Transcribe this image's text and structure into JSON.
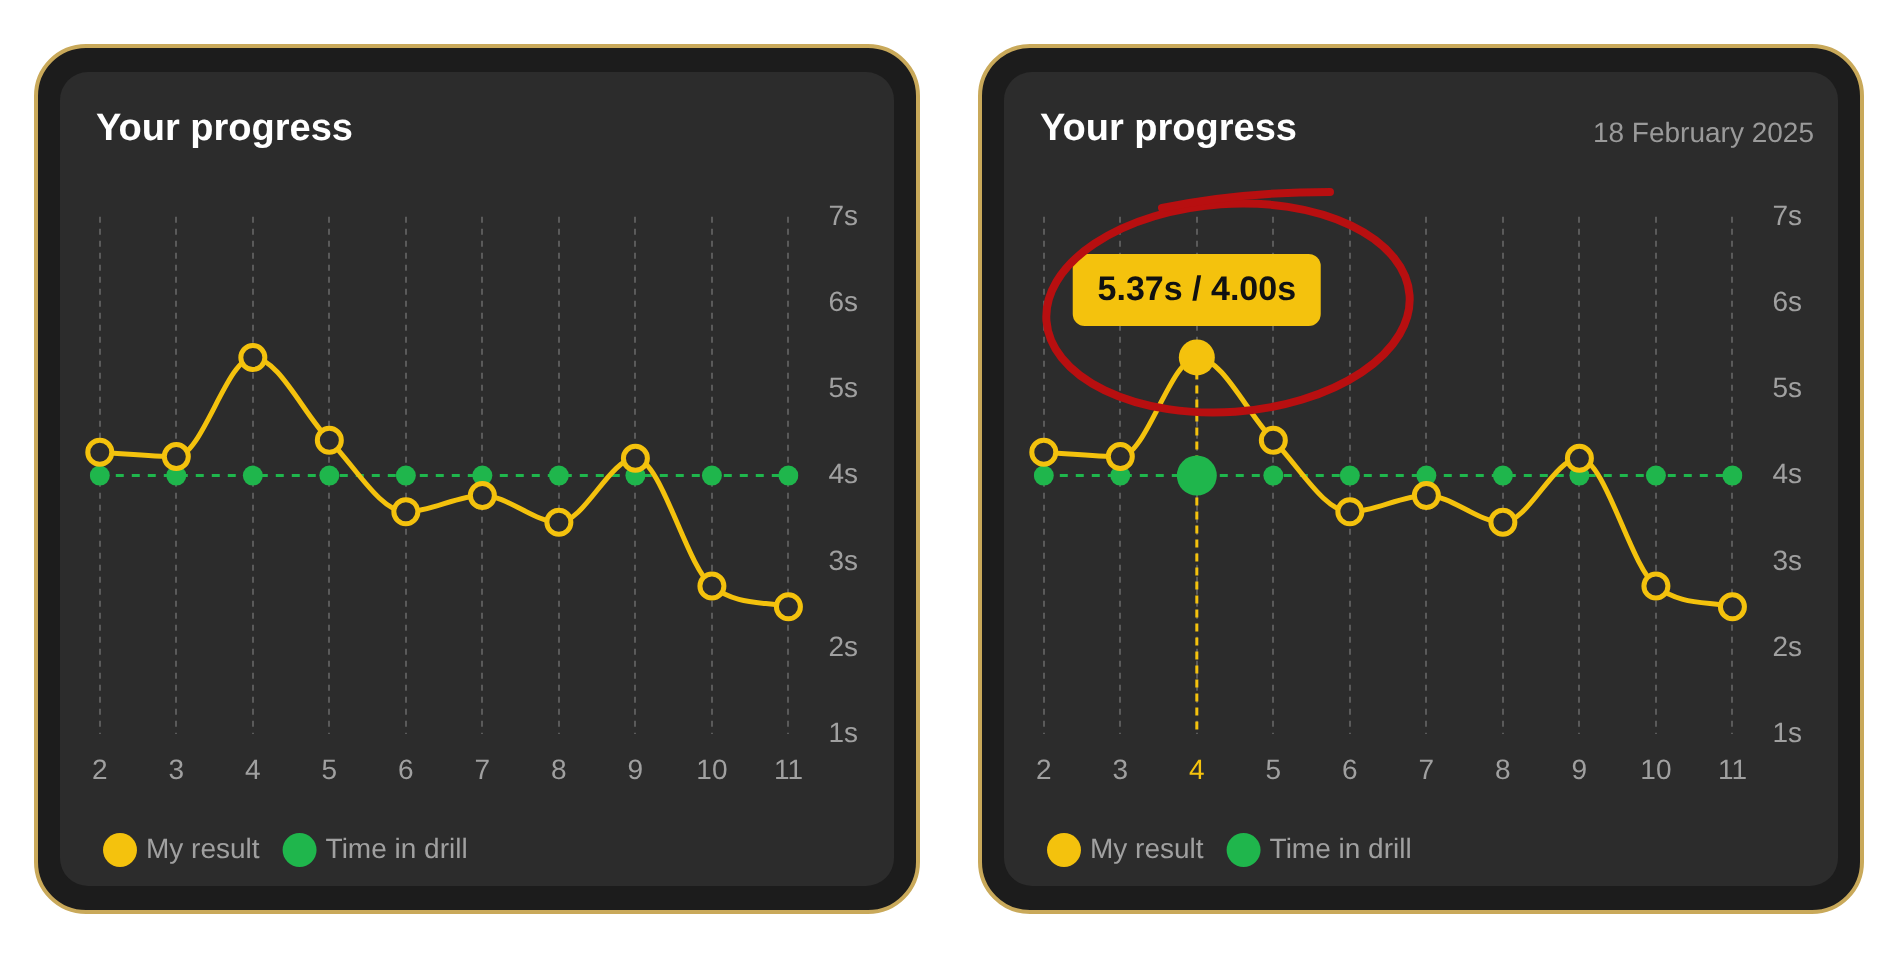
{
  "chart_data": [
    {
      "type": "line",
      "title": "Your progress",
      "categories": [
        "2",
        "3",
        "4",
        "5",
        "6",
        "7",
        "8",
        "9",
        "10",
        "11"
      ],
      "series": [
        {
          "name": "My result",
          "color": "#f4c20d",
          "values": [
            4.27,
            4.22,
            5.37,
            4.41,
            3.58,
            3.77,
            3.46,
            4.2,
            2.72,
            2.48
          ],
          "line_style": "solid",
          "marker": "circle"
        },
        {
          "name": "Time in drill",
          "color": "#1fb64c",
          "values": [
            4,
            4,
            4,
            4,
            4,
            4,
            4,
            4,
            4,
            4
          ],
          "line_style": "dashed",
          "marker": "circle"
        }
      ],
      "ylim": [
        1,
        7
      ],
      "yticks": [
        {
          "value": 1,
          "label": "1s"
        },
        {
          "value": 2,
          "label": "2s"
        },
        {
          "value": 3,
          "label": "3s"
        },
        {
          "value": 4,
          "label": "4s"
        },
        {
          "value": 5,
          "label": "5s"
        },
        {
          "value": 6,
          "label": "6s"
        },
        {
          "value": 7,
          "label": "7s"
        }
      ],
      "grid": "x",
      "legend": "bottom left"
    },
    {
      "type": "line",
      "title": "Your progress",
      "subtitle": "18 February 2025",
      "categories": [
        "2",
        "3",
        "4",
        "5",
        "6",
        "7",
        "8",
        "9",
        "10",
        "11"
      ],
      "series": [
        {
          "name": "My result",
          "color": "#f4c20d",
          "values": [
            4.27,
            4.22,
            5.37,
            4.41,
            3.58,
            3.77,
            3.46,
            4.2,
            2.72,
            2.48
          ],
          "line_style": "solid",
          "marker": "circle"
        },
        {
          "name": "Time in drill",
          "color": "#1fb64c",
          "values": [
            4,
            4,
            4,
            4,
            4,
            4,
            4,
            4,
            4,
            4
          ],
          "line_style": "dashed",
          "marker": "circle"
        }
      ],
      "ylim": [
        1,
        7
      ],
      "yticks": [
        {
          "value": 1,
          "label": "1s"
        },
        {
          "value": 2,
          "label": "2s"
        },
        {
          "value": 3,
          "label": "3s"
        },
        {
          "value": 4,
          "label": "4s"
        },
        {
          "value": 5,
          "label": "5s"
        },
        {
          "value": 6,
          "label": "6s"
        },
        {
          "value": 7,
          "label": "7s"
        }
      ],
      "grid": "x",
      "legend": "bottom left",
      "ref_lines": [
        {
          "axis": "x",
          "value": "4",
          "color": "#f4c20d",
          "line_style": "dashed"
        }
      ],
      "annotations": [
        {
          "text": "5.37s / 4.00s",
          "x": "4",
          "y": 5.37
        }
      ]
    }
  ]
}
